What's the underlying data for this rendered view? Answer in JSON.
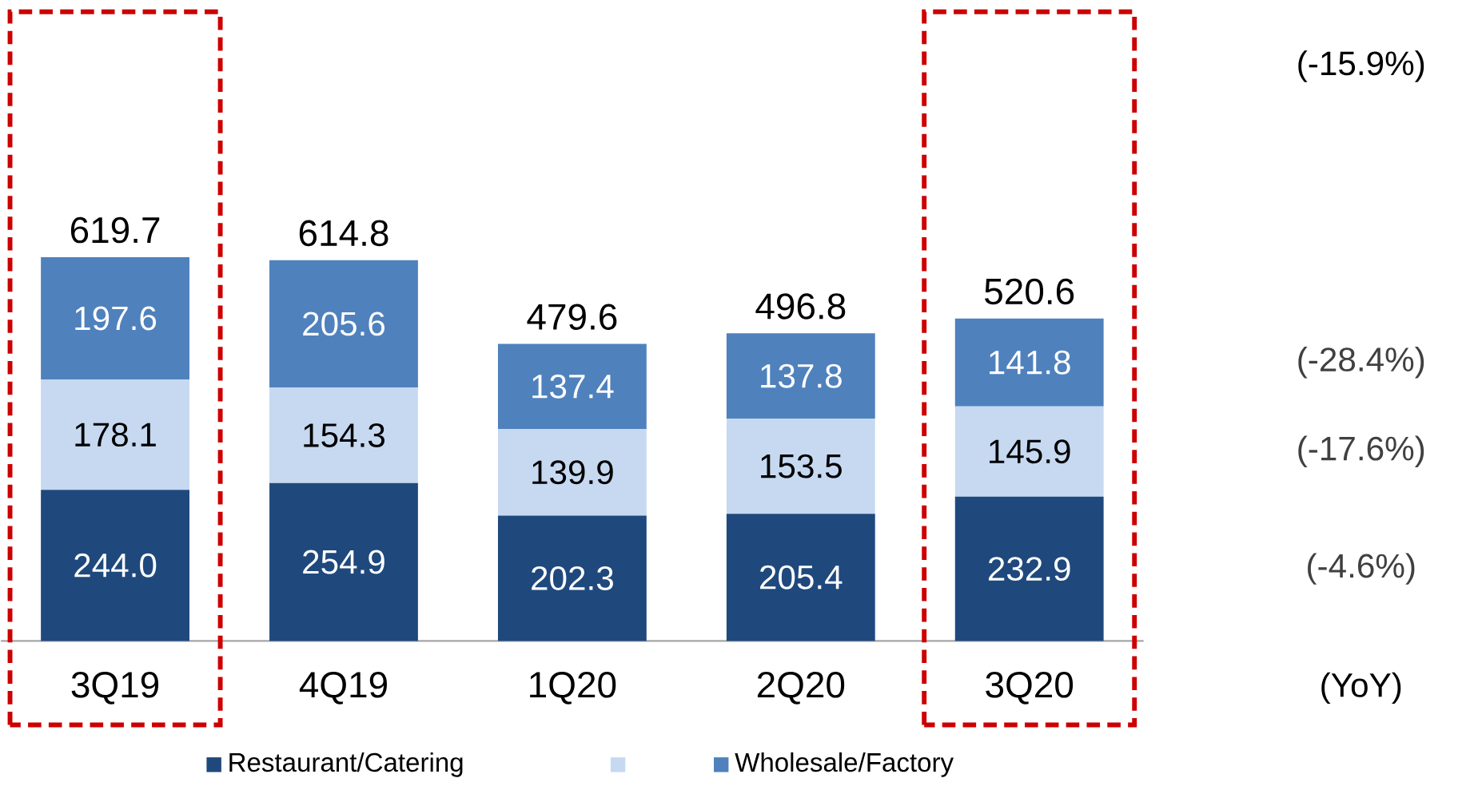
{
  "chart_data": {
    "type": "bar",
    "stacked": true,
    "legend": "bottom",
    "categories": [
      "3Q19",
      "4Q19",
      "1Q20",
      "2Q20",
      "3Q20"
    ],
    "series": [
      {
        "name": "Restaurant/Catering",
        "color": "#1f497d",
        "values": [
          244.0,
          254.9,
          202.3,
          205.4,
          232.9
        ],
        "value_labels": [
          "244.0",
          "254.9",
          "202.3",
          "205.4",
          "232.9"
        ]
      },
      {
        "color": "#c6d9f1",
        "values": [
          178.1,
          154.3,
          139.9,
          153.5,
          145.9
        ],
        "value_labels": [
          "178.1",
          "154.3",
          "139.9",
          "153.5",
          "145.9"
        ]
      },
      {
        "name": "Wholesale/Factory",
        "color": "#4f81bd",
        "values": [
          197.6,
          205.6,
          137.4,
          137.8,
          141.8
        ],
        "value_labels": [
          "197.6",
          "205.6",
          "137.4",
          "137.8",
          "141.8"
        ]
      }
    ],
    "totals": [
      "619.7",
      "614.8",
      "479.6",
      "496.8",
      "520.6"
    ],
    "annotations": [
      "(-15.9%)",
      "(-28.4%)",
      "(-17.6%)",
      "(-4.6%)",
      "(YoY)"
    ]
  }
}
